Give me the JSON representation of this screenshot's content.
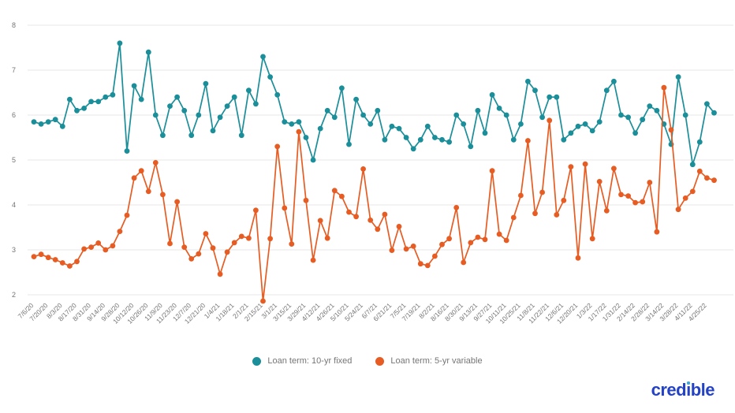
{
  "chart_data": {
    "type": "line",
    "title": "",
    "xlabel": "",
    "ylabel": "",
    "ylim": [
      2,
      8
    ],
    "yticks": [
      2,
      3,
      4,
      5,
      6,
      7,
      8
    ],
    "grid": true,
    "legend_position": "bottom",
    "points_per_label": 2,
    "x_labels": [
      "7/6/20",
      "7/20/20",
      "8/3/20",
      "8/17/20",
      "8/31/20",
      "9/14/20",
      "9/28/20",
      "10/12/20",
      "10/26/20",
      "11/9/20",
      "11/23/20",
      "12/7/20",
      "12/21/20",
      "1/4/21",
      "1/18/21",
      "2/1/21",
      "2/15/21",
      "3/1/21",
      "3/15/21",
      "3/29/21",
      "4/12/21",
      "4/26/21",
      "5/10/21",
      "5/24/21",
      "6/7/21",
      "6/21/21",
      "7/5/21",
      "7/19/21",
      "8/2/21",
      "8/16/21",
      "8/30/21",
      "9/13/21",
      "9/27/21",
      "10/11/21",
      "10/25/21",
      "11/8/21",
      "11/22/21",
      "12/6/21",
      "12/20/21",
      "1/3/22",
      "1/17/22",
      "1/31/22",
      "2/14/22",
      "2/28/22",
      "3/14/22",
      "3/28/22",
      "4/11/22",
      "4/25/22"
    ],
    "series": [
      {
        "name": "Loan term: 10-yr fixed",
        "color": "#1a8e99",
        "values": [
          5.85,
          5.8,
          5.85,
          5.9,
          5.75,
          6.35,
          6.1,
          6.15,
          6.3,
          6.3,
          6.4,
          6.45,
          7.6,
          5.2,
          6.65,
          6.35,
          7.4,
          6.0,
          5.55,
          6.2,
          6.4,
          6.1,
          5.55,
          6.0,
          6.7,
          5.65,
          5.95,
          6.2,
          6.4,
          5.55,
          6.55,
          6.25,
          7.3,
          6.85,
          6.45,
          5.85,
          5.8,
          5.85,
          5.5,
          5.0,
          5.7,
          6.1,
          5.95,
          6.6,
          5.35,
          6.35,
          6.0,
          5.8,
          6.1,
          5.45,
          5.75,
          5.7,
          5.5,
          5.25,
          5.45,
          5.75,
          5.5,
          5.45,
          5.4,
          6.0,
          5.8,
          5.3,
          6.1,
          5.6,
          6.45,
          6.15,
          6.0,
          5.45,
          5.8,
          6.75,
          6.55,
          5.95,
          6.4,
          6.4,
          5.45,
          5.6,
          5.75,
          5.8,
          5.65,
          5.85,
          6.55,
          6.75,
          6.0,
          5.95,
          5.6,
          5.9,
          6.2,
          6.1,
          5.8,
          5.35,
          6.85,
          6.0,
          4.9,
          5.4,
          6.25,
          6.05
        ]
      },
      {
        "name": "Loan term: 5-yr variable",
        "color": "#e65c22",
        "values": [
          2.85,
          2.9,
          2.83,
          2.78,
          2.71,
          2.64,
          2.74,
          3.02,
          3.06,
          3.15,
          3.0,
          3.09,
          3.41,
          3.77,
          4.6,
          4.76,
          4.3,
          4.94,
          4.23,
          3.14,
          4.07,
          3.06,
          2.8,
          2.91,
          3.36,
          3.04,
          2.46,
          2.95,
          3.16,
          3.3,
          3.26,
          3.88,
          1.86,
          3.25,
          5.3,
          3.93,
          3.13,
          5.63,
          4.1,
          2.77,
          3.65,
          3.26,
          4.32,
          4.19,
          3.84,
          3.74,
          4.8,
          3.66,
          3.46,
          3.79,
          2.99,
          3.52,
          3.02,
          3.08,
          2.69,
          2.65,
          2.86,
          3.12,
          3.25,
          3.94,
          2.72,
          3.16,
          3.28,
          3.23,
          4.76,
          3.35,
          3.21,
          3.72,
          4.21,
          5.43,
          3.81,
          4.28,
          5.88,
          3.78,
          4.1,
          4.85,
          2.82,
          4.91,
          3.25,
          4.52,
          3.87,
          4.81,
          4.23,
          4.2,
          4.05,
          4.07,
          4.5,
          3.4,
          6.61,
          5.67,
          3.9,
          4.15,
          4.3,
          4.75,
          4.6,
          4.55
        ]
      }
    ]
  },
  "legend": {
    "items": [
      {
        "label": "Loan term: 10-yr fixed",
        "color": "#1a8e99"
      },
      {
        "label": "Loan term: 5-yr variable",
        "color": "#e65c22"
      }
    ]
  },
  "branding": {
    "logo_text": "credible",
    "logo_color": "#2442c4",
    "logo_dot_color": "#3ba9dc"
  },
  "colors": {
    "background": "#ffffff",
    "gridline": "#e7e7e7",
    "axis_text": "#757575"
  }
}
